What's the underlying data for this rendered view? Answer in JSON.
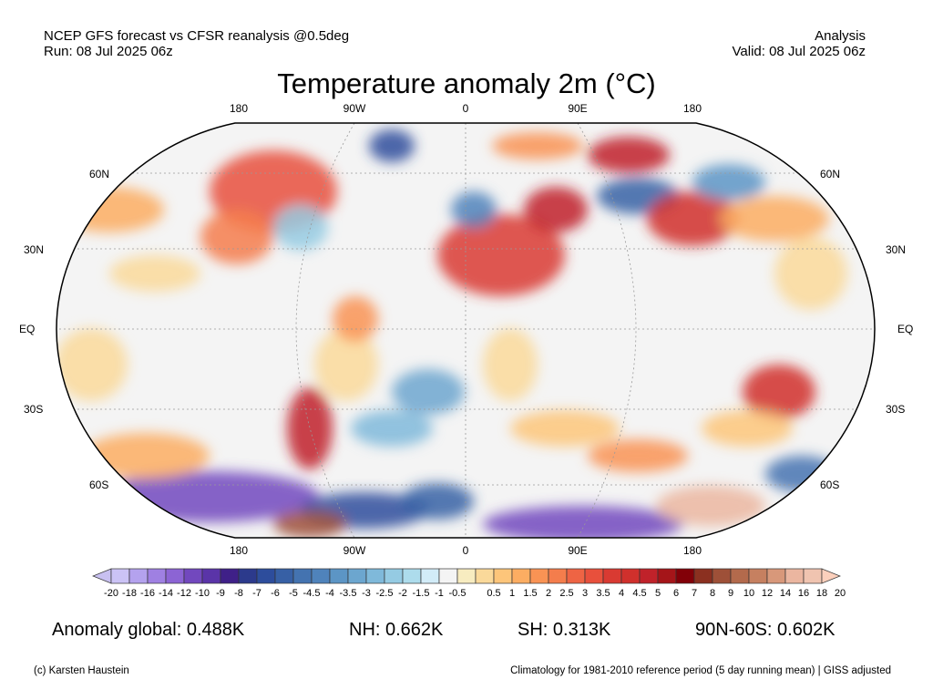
{
  "header": {
    "left_line1": "NCEP GFS forecast vs CFSR reanalysis @0.5deg",
    "left_line2": "Run: 08 Jul 2025 06z",
    "right_line1": "Analysis",
    "right_line2": "Valid: 08 Jul 2025 06z"
  },
  "title": "Temperature anomaly 2m (°C)",
  "map": {
    "lon_labels_top": [
      "180",
      "90W",
      "0",
      "90E",
      "180"
    ],
    "lon_labels_bottom": [
      "180",
      "90W",
      "0",
      "90E",
      "180"
    ],
    "lat_labels": [
      "60N",
      "30N",
      "EQ",
      "30S",
      "60S"
    ]
  },
  "colorbar": {
    "labels": [
      "-20",
      "-18",
      "-16",
      "-14",
      "-12",
      "-10",
      "-9",
      "-8",
      "-7",
      "-6",
      "-5",
      "-4.5",
      "-4",
      "-3.5",
      "-3",
      "-2.5",
      "-2",
      "-1.5",
      "-1",
      "-0.5",
      "0.5",
      "1",
      "1.5",
      "2",
      "2.5",
      "3",
      "3.5",
      "4",
      "4.5",
      "5",
      "6",
      "7",
      "8",
      "9",
      "10",
      "12",
      "14",
      "16",
      "18",
      "20"
    ],
    "colors": [
      "#cbc3f5",
      "#b4a2ee",
      "#9f80e2",
      "#8c64d4",
      "#7248be",
      "#5a34a8",
      "#3f2088",
      "#2c3a8c",
      "#2d4d9c",
      "#3760a5",
      "#4473b0",
      "#4f83bb",
      "#5c95c5",
      "#6ca6cf",
      "#7fb9da",
      "#95cbe3",
      "#addcec",
      "#d2ecf8",
      "#f4f4f4",
      "#f7ecc0",
      "#fad99a",
      "#fdc57a",
      "#fcad62",
      "#f99354",
      "#f47d4c",
      "#ee6444",
      "#e8503c",
      "#d93a32",
      "#d0302c",
      "#c0222a",
      "#a51519",
      "#820008",
      "#8b3020",
      "#9e5038",
      "#b36a4c",
      "#c68060",
      "#d8987a",
      "#ebb6a0",
      "#f0c4b0"
    ],
    "under_color": "#c8c0f0",
    "over_color": "#fcd0bc"
  },
  "stats": {
    "global": "Anomaly global: 0.488K",
    "nh": "NH: 0.662K",
    "sh": "SH: 0.313K",
    "band": "90N-60S: 0.602K"
  },
  "footer": {
    "credit": "(c) Karsten Haustein",
    "note": "Climatology for 1981-2010 reference period (5 day running mean) | GISS adjusted"
  }
}
